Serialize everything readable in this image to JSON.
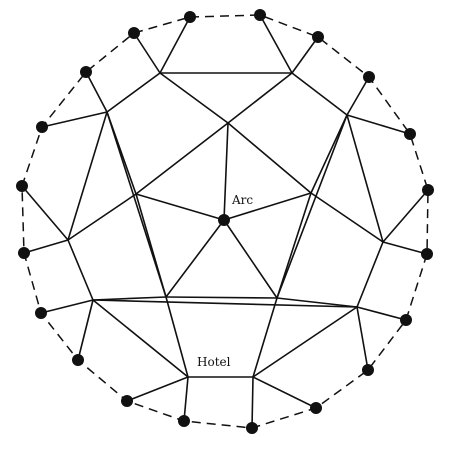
{
  "diagram": {
    "labels": {
      "center": "Arc",
      "hotel": "Hotel"
    },
    "colors": {
      "ink": "#111111",
      "background": "#ffffff"
    }
  }
}
